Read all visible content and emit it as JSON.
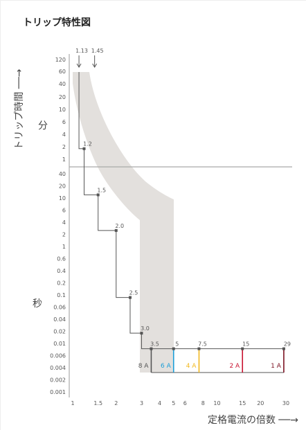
{
  "chart_data": {
    "type": "line",
    "title": "トリップ特性図",
    "ylabel_upper": "トリップ時間 ──→",
    "ylabel_upper_unit": "分",
    "ylabel_lower_unit": "秒",
    "xlabel": "定格電流の倍数 ──→",
    "x_ticks": [
      "1",
      "1.5",
      "2",
      "3",
      "4",
      "5",
      "6",
      "8",
      "10",
      "15",
      "20",
      "30"
    ],
    "y_ticks_minutes": [
      "120",
      "60",
      "40",
      "20",
      "10",
      "6",
      "4",
      "2",
      "1"
    ],
    "y_ticks_seconds": [
      "40",
      "20",
      "10",
      "6",
      "4",
      "2",
      "1",
      "0.6",
      "0.4",
      "0.2",
      "0.1",
      "0.06",
      "0.04",
      "0.02",
      "0.01",
      "0.006",
      "0.004",
      "0.002",
      "0.001"
    ],
    "top_markers": [
      "1.13",
      "1.45"
    ],
    "curve_points": [
      {
        "label": "1.2",
        "x": 1.2,
        "y_unit": "min",
        "y": 1.8
      },
      {
        "label": "1.5",
        "x": 1.5,
        "y_unit": "s",
        "y": 12
      },
      {
        "label": "2.0",
        "x": 2.0,
        "y_unit": "s",
        "y": 2.5
      },
      {
        "label": "2.5",
        "x": 2.5,
        "y_unit": "s",
        "y": 0.09
      },
      {
        "label": "3.0",
        "x": 3.0,
        "y_unit": "s",
        "y": 0.018
      },
      {
        "label": "3.5",
        "x": 3.5,
        "y_unit": "s",
        "y": 0.008
      },
      {
        "label": "5",
        "x": 5,
        "y_unit": "s",
        "y": 0.008
      },
      {
        "label": "7.5",
        "x": 7.5,
        "y_unit": "s",
        "y": 0.008
      },
      {
        "label": "15",
        "x": 15,
        "y_unit": "s",
        "y": 0.008
      },
      {
        "label": "29",
        "x": 29,
        "y_unit": "s",
        "y": 0.008
      }
    ],
    "rating_lines": [
      {
        "label": "8 A",
        "x": 3.5,
        "color": "#555555"
      },
      {
        "label": "6 A",
        "x": 5,
        "color": "#1a9ed8"
      },
      {
        "label": "4 A",
        "x": 7.5,
        "color": "#f2b81e"
      },
      {
        "label": "2 A",
        "x": 15,
        "color": "#c8102e"
      },
      {
        "label": "1 A",
        "x": 29,
        "color": "#7a1020"
      }
    ],
    "colors": {
      "band": "#e3e0dd",
      "curve": "#555555",
      "grid_divider": "#a9a9a9"
    }
  }
}
